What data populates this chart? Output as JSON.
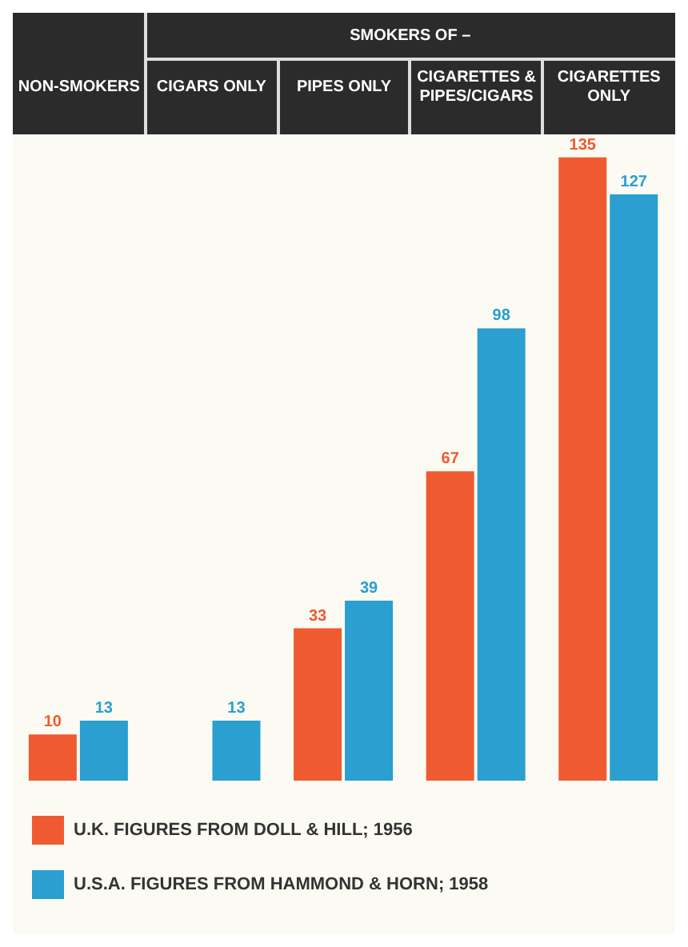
{
  "chart_data": {
    "type": "bar",
    "subtitle": "SMOKERS OF –",
    "categories": [
      "NON-SMOKERS",
      "CIGARS ONLY",
      "PIPES ONLY",
      "CIGARETTES & PIPES/CIGARS",
      "CIGARETTES ONLY"
    ],
    "series": [
      {
        "name": "U.K. FIGURES FROM DOLL & HILL; 1956",
        "color": "#f05a30",
        "values": [
          10,
          null,
          33,
          67,
          135
        ]
      },
      {
        "name": "U.S.A. FIGURES FROM HAMMOND & HORN; 1958",
        "color": "#2a9fd0",
        "values": [
          13,
          13,
          39,
          98,
          127
        ]
      }
    ],
    "data_labels": true,
    "legend": "bottom left"
  }
}
